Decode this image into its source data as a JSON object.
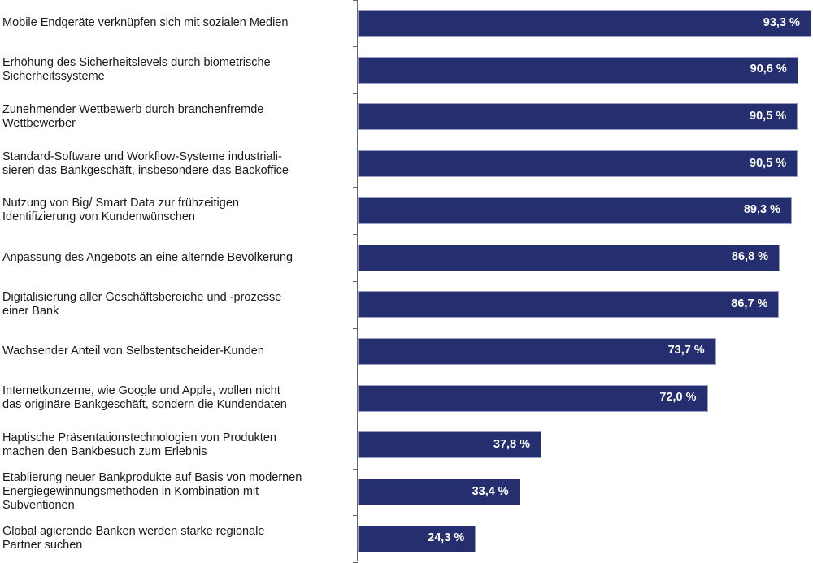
{
  "chart_data": {
    "type": "bar",
    "orientation": "horizontal",
    "title": "",
    "xlabel": "",
    "ylabel": "",
    "xlim": [
      0,
      100
    ],
    "grid": false,
    "bar_color": "#252e6e",
    "value_label_color": "#ffffff",
    "categories": [
      "Mobile Endgeräte verknüpfen sich mit sozialen Medien",
      "Erhöhung des Sicherheitslevels durch biometrische Sicherheitssysteme",
      "Zunehmender Wettbewerb durch branchenfremde Wettbewerber",
      "Standard-Software und Workflow-Systeme industriali-sieren das Bankgeschäft, insbesondere das Backoffice",
      "Nutzung von Big/ Smart Data zur frühzeitigen Identifizierung von Kundenwünschen",
      "Anpassung des Angebots an eine alternde Bevölkerung",
      "Digitalisierung aller Geschäftsbereiche und -prozesse einer Bank",
      "Wachsender Anteil von Selbstentscheider-Kunden",
      "Internetkonzerne, wie Google und Apple, wollen nicht das originäre Bankgeschäft, sondern die Kundendaten",
      "Haptische Präsentationstechnologien von Produkten machen den Bankbesuch zum Erlebnis",
      "Etablierung neuer Bankprodukte auf Basis von modernen Energiegewinnungsmethoden in Kombination mit Subventionen",
      "Global agierende Banken werden starke regionale Partner suchen"
    ],
    "category_lines": [
      [
        "Mobile Endgeräte verknüpfen sich mit sozialen Medien"
      ],
      [
        "Erhöhung des Sicherheitslevels durch biometrische",
        "Sicherheitssysteme"
      ],
      [
        "Zunehmender Wettbewerb durch branchenfremde",
        "Wettbewerber"
      ],
      [
        "Standard-Software und Workflow-Systeme industriali-",
        "sieren das Bankgeschäft, insbesondere das Backoffice"
      ],
      [
        "Nutzung von Big/ Smart Data zur frühzeitigen",
        "Identifizierung von Kundenwünschen"
      ],
      [
        "Anpassung des Angebots an eine alternde Bevölkerung"
      ],
      [
        "Digitalisierung aller Geschäftsbereiche und -prozesse",
        "einer Bank"
      ],
      [
        "Wachsender Anteil von Selbstentscheider-Kunden"
      ],
      [
        "Internetkonzerne, wie Google und Apple, wollen nicht",
        "das originäre Bankgeschäft, sondern die Kundendaten"
      ],
      [
        "Haptische Präsentationstechnologien von Produkten",
        "machen den Bankbesuch zum Erlebnis"
      ],
      [
        "Etablierung neuer Bankprodukte auf Basis von modernen",
        "Energiegewinnungsmethoden in Kombination mit",
        "Subventionen"
      ],
      [
        "Global agierende Banken werden starke regionale",
        "Partner suchen"
      ]
    ],
    "values": [
      93.3,
      90.6,
      90.5,
      90.5,
      89.3,
      86.8,
      86.7,
      73.7,
      72.0,
      37.8,
      33.4,
      24.3
    ],
    "value_labels": [
      "93,3 %",
      "90,6 %",
      "90,5 %",
      "90,5 %",
      "89,3 %",
      "86,8 %",
      "86,7 %",
      "73,7 %",
      "72,0 %",
      "37,8 %",
      "33,4 %",
      "24,3 %"
    ]
  }
}
